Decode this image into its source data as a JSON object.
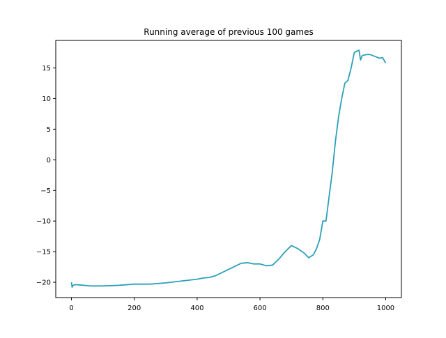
{
  "chart_data": {
    "type": "line",
    "title": "Running average of previous 100 games",
    "xlabel": "",
    "ylabel": "",
    "xlim": [
      -50,
      1050
    ],
    "ylim": [
      -22.5,
      19.5
    ],
    "xticks": [
      0,
      200,
      400,
      600,
      800,
      1000
    ],
    "yticks": [
      -20,
      -15,
      -10,
      -5,
      0,
      5,
      10,
      15
    ],
    "x_tick_labels": [
      "0",
      "200",
      "400",
      "600",
      "800",
      "1000"
    ],
    "y_tick_labels": [
      "−20",
      "−15",
      "−10",
      "−5",
      "0",
      "5",
      "10",
      "15"
    ],
    "grid": false,
    "legend": "none",
    "line_color": "#2ca0b8",
    "series": [
      {
        "x": [
          0,
          2,
          5,
          10,
          20,
          40,
          60,
          80,
          100,
          150,
          200,
          250,
          300,
          350,
          400,
          420,
          440,
          460,
          480,
          500,
          520,
          540,
          560,
          580,
          600,
          620,
          640,
          660,
          680,
          700,
          720,
          740,
          755,
          770,
          780,
          790,
          800,
          810,
          820,
          830,
          840,
          850,
          860,
          870,
          880,
          890,
          900,
          910,
          915,
          920,
          925,
          930,
          940,
          950,
          960,
          970,
          980,
          990,
          1000
        ],
        "y": [
          -20.0,
          -20.8,
          -20.5,
          -20.4,
          -20.4,
          -20.5,
          -20.6,
          -20.6,
          -20.6,
          -20.5,
          -20.3,
          -20.3,
          -20.1,
          -19.8,
          -19.5,
          -19.3,
          -19.2,
          -18.9,
          -18.4,
          -17.9,
          -17.4,
          -16.9,
          -16.8,
          -17.0,
          -17.0,
          -17.3,
          -17.2,
          -16.2,
          -15.0,
          -14.0,
          -14.5,
          -15.2,
          -16.0,
          -15.5,
          -14.5,
          -13.0,
          -10.0,
          -10.0,
          -6.0,
          -2.0,
          3.0,
          7.0,
          10.0,
          12.5,
          13.0,
          15.0,
          17.5,
          17.8,
          17.9,
          16.3,
          17.0,
          17.1,
          17.2,
          17.2,
          17.0,
          16.8,
          16.6,
          16.7,
          15.8
        ]
      }
    ]
  }
}
